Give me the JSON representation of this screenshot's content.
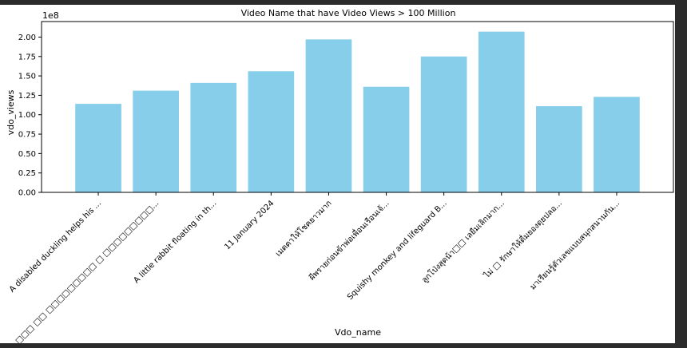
{
  "chart_data": {
    "type": "bar",
    "title": "Video Name that have Video Views > 100 Million",
    "xlabel": "Vdo_name",
    "ylabel": "vdo_views",
    "y_multiplier": "1e8",
    "ylim": [
      0,
      2.2
    ],
    "yticks": [
      "0.00",
      "0.25",
      "0.50",
      "0.75",
      "1.00",
      "1.25",
      "1.50",
      "1.75",
      "2.00"
    ],
    "bar_color": "#87ceeb",
    "grid": false,
    "categories": [
      "A disabled duckling helps his ...",
      "□□□ □□ □□□□□□□□□ □ □□□□□□□□□...",
      "A little rabbit floating in th...",
      "11 January 2024",
      "เมตตาให้โชคยาวมาก",
      "ผีพรายก่อนข้าพ่อเพื่อนเรือนเจ้...",
      "Squishy monkey and lifeguard B...",
      "ลูกโป่งสุดน้า□□ เลยืมเลิกมาก...",
      "ไม่ □ รักษาให้ดื่มยองดุยปลอ...",
      "มาเรียนรู้ตัวเลขแบบสนุกสนานกัน..."
    ],
    "values": [
      1.14,
      1.31,
      1.41,
      1.56,
      1.97,
      1.36,
      1.75,
      2.07,
      1.11,
      1.23
    ]
  }
}
